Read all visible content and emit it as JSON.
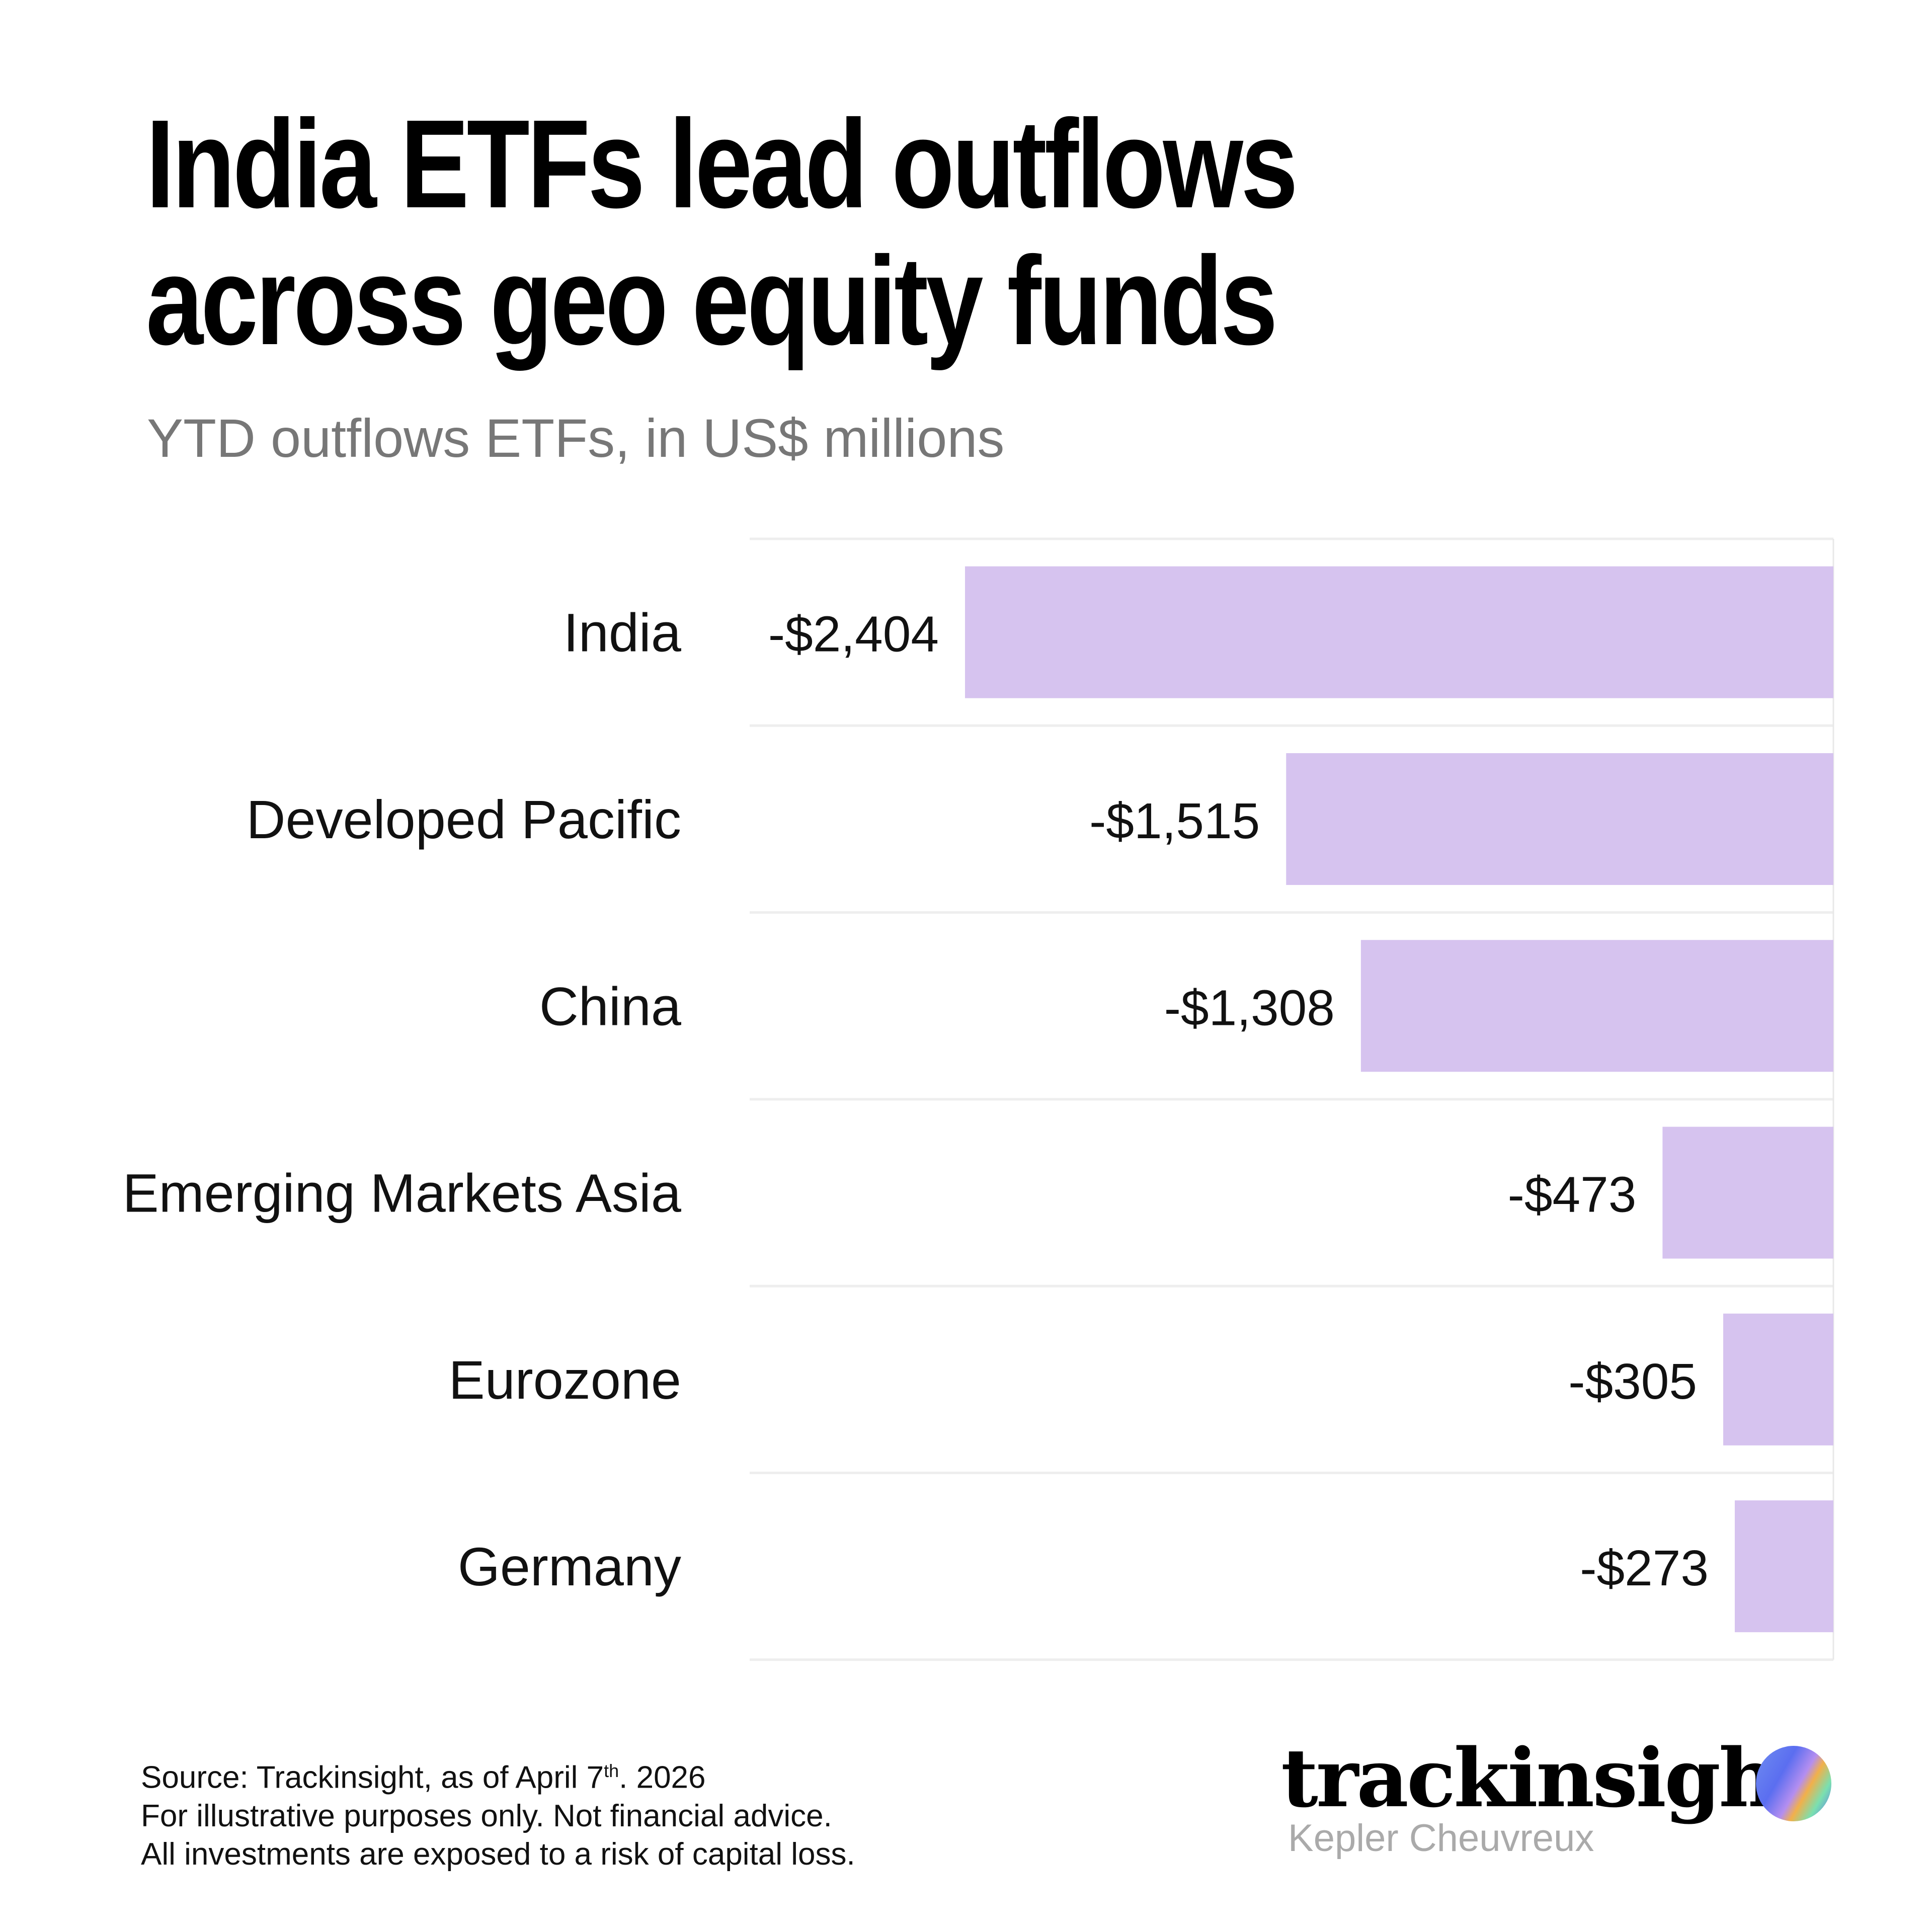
{
  "header": {
    "title_line1": "India ETFs lead outflows",
    "title_line2": "across geo equity funds",
    "subtitle": "YTD outflows ETFs, in US$ millions"
  },
  "chart_data": {
    "type": "bar",
    "orientation": "horizontal",
    "categories": [
      "India",
      "Developed Pacific",
      "China",
      "Emerging Markets Asia",
      "Eurozone",
      "Germany"
    ],
    "values": [
      -2404,
      -1515,
      -1308,
      -473,
      -305,
      -273
    ],
    "data_labels": [
      "-$2,404",
      "-$1,515",
      "-$1,308",
      "-$473",
      "-$305",
      "-$273"
    ],
    "title": "",
    "xlabel": "",
    "ylabel": "",
    "xlim": [
      -2404,
      0
    ],
    "bar_color": "#d6c3ef",
    "grid": true
  },
  "footer": {
    "source_prefix": "Source: Trackinsight, as of April 7",
    "source_sup": "th",
    "source_suffix": ". 2026",
    "line2": "For illustrative purposes only. Not financial advice.",
    "line3": "All investments are exposed to a risk of capital loss."
  },
  "logo": {
    "name": "trackinsight",
    "partner": "Kepler Cheuvreux"
  }
}
